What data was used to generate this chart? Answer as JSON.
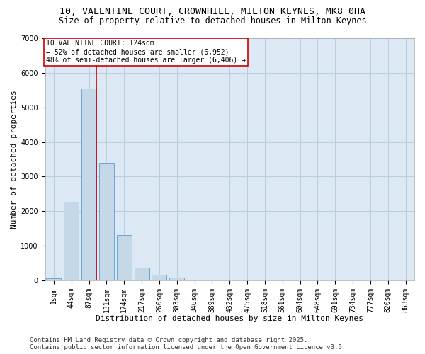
{
  "title_line1": "10, VALENTINE COURT, CROWNHILL, MILTON KEYNES, MK8 0HA",
  "title_line2": "Size of property relative to detached houses in Milton Keynes",
  "xlabel": "Distribution of detached houses by size in Milton Keynes",
  "ylabel": "Number of detached properties",
  "categories": [
    "1sqm",
    "44sqm",
    "87sqm",
    "131sqm",
    "174sqm",
    "217sqm",
    "260sqm",
    "303sqm",
    "346sqm",
    "389sqm",
    "432sqm",
    "475sqm",
    "518sqm",
    "561sqm",
    "604sqm",
    "648sqm",
    "691sqm",
    "734sqm",
    "777sqm",
    "820sqm",
    "863sqm"
  ],
  "values": [
    50,
    2280,
    5550,
    3400,
    1300,
    370,
    165,
    70,
    20,
    5,
    2,
    0,
    0,
    0,
    0,
    0,
    0,
    0,
    0,
    0,
    0
  ],
  "bar_color": "#c5d8e8",
  "bar_edge_color": "#5b9bd5",
  "vline_x": 2.43,
  "vline_color": "#cc0000",
  "annotation_text": "10 VALENTINE COURT: 124sqm\n← 52% of detached houses are smaller (6,952)\n48% of semi-detached houses are larger (6,406) →",
  "annotation_box_color": "#cc0000",
  "ylim": [
    0,
    7000
  ],
  "yticks": [
    0,
    1000,
    2000,
    3000,
    4000,
    5000,
    6000,
    7000
  ],
  "footer_line1": "Contains HM Land Registry data © Crown copyright and database right 2025.",
  "footer_line2": "Contains public sector information licensed under the Open Government Licence v3.0.",
  "background_color": "#ffffff",
  "plot_bg_color": "#dce9f5",
  "grid_color": "#b8cfe0",
  "title_fontsize": 9.5,
  "subtitle_fontsize": 8.5,
  "axis_label_fontsize": 8,
  "tick_fontsize": 7,
  "annotation_fontsize": 7,
  "footer_fontsize": 6.5
}
